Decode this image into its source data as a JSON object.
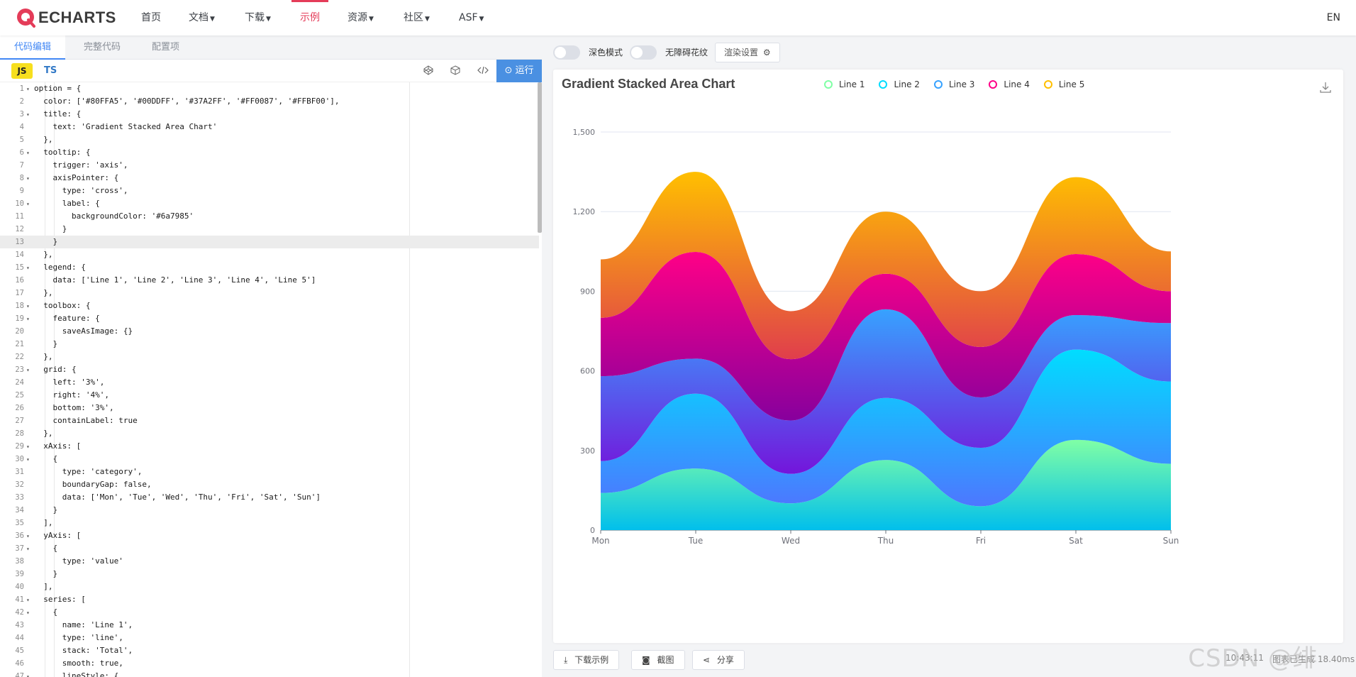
{
  "nav": {
    "logo_text": "ECHARTS",
    "items": [
      "首页",
      "文档",
      "下载",
      "示例",
      "资源",
      "社区",
      "ASF"
    ],
    "lang": "EN"
  },
  "editor": {
    "tabs": [
      "代码编辑",
      "完整代码",
      "配置项"
    ],
    "js": "JS",
    "ts": "TS",
    "run": "运行",
    "icons": [
      "codepen-icon",
      "codesandbox-icon",
      "code-icon"
    ],
    "lines": [
      "option = {",
      "  color: ['#80FFA5', '#00DDFF', '#37A2FF', '#FF0087', '#FFBF00'],",
      "  title: {",
      "    text: 'Gradient Stacked Area Chart'",
      "  },",
      "  tooltip: {",
      "    trigger: 'axis',",
      "    axisPointer: {",
      "      type: 'cross',",
      "      label: {",
      "        backgroundColor: '#6a7985'",
      "      }",
      "    }",
      "  },",
      "  legend: {",
      "    data: ['Line 1', 'Line 2', 'Line 3', 'Line 4', 'Line 5']",
      "  },",
      "  toolbox: {",
      "    feature: {",
      "      saveAsImage: {}",
      "    }",
      "  },",
      "  grid: {",
      "    left: '3%',",
      "    right: '4%',",
      "    bottom: '3%',",
      "    containLabel: true",
      "  },",
      "  xAxis: [",
      "    {",
      "      type: 'category',",
      "      boundaryGap: false,",
      "      data: ['Mon', 'Tue', 'Wed', 'Thu', 'Fri', 'Sat', 'Sun']",
      "    }",
      "  ],",
      "  yAxis: [",
      "    {",
      "      type: 'value'",
      "    }",
      "  ],",
      "  series: [",
      "    {",
      "      name: 'Line 1',",
      "      type: 'line',",
      "      stack: 'Total',",
      "      smooth: true,",
      "      lineStyle: {"
    ],
    "folds": [
      1,
      3,
      6,
      8,
      10,
      15,
      18,
      19,
      23,
      29,
      30,
      36,
      37,
      41,
      42,
      47
    ],
    "highlight_line": 13
  },
  "preview": {
    "dark_mode": "深色模式",
    "accessible": "无障碍花纹",
    "render_settings": "渲染设置",
    "download": "下载示例",
    "screenshot": "截图",
    "share": "分享",
    "time": "10:43:11",
    "render_time": "图表已生成 18.40ms",
    "watermark": "CSDN @绯"
  },
  "chart_data": {
    "type": "area",
    "title": "Gradient Stacked Area Chart",
    "stacked": true,
    "smooth": true,
    "categories": [
      "Mon",
      "Tue",
      "Wed",
      "Thu",
      "Fri",
      "Sat",
      "Sun"
    ],
    "ylim": [
      0,
      1500
    ],
    "yticks": [
      0,
      300,
      600,
      900,
      1200,
      1500
    ],
    "legend_position": "top",
    "series": [
      {
        "name": "Line 1",
        "values": [
          140,
          232,
          101,
          264,
          90,
          340,
          250
        ],
        "color_top": "#80FFA5",
        "color_bottom": "#01BFEC"
      },
      {
        "name": "Line 2",
        "values": [
          120,
          282,
          111,
          234,
          220,
          340,
          310
        ],
        "color_top": "#00DDFF",
        "color_bottom": "#4D77FF"
      },
      {
        "name": "Line 3",
        "values": [
          320,
          132,
          201,
          334,
          190,
          130,
          220
        ],
        "color_top": "#37A2FF",
        "color_bottom": "#7415DB"
      },
      {
        "name": "Line 4",
        "values": [
          220,
          402,
          231,
          134,
          190,
          230,
          120
        ],
        "color_top": "#FF0087",
        "color_bottom": "#87009D"
      },
      {
        "name": "Line 5",
        "values": [
          220,
          302,
          181,
          234,
          210,
          290,
          150
        ],
        "color_top": "#FFBF00",
        "color_bottom": "#E03E4C"
      }
    ]
  }
}
